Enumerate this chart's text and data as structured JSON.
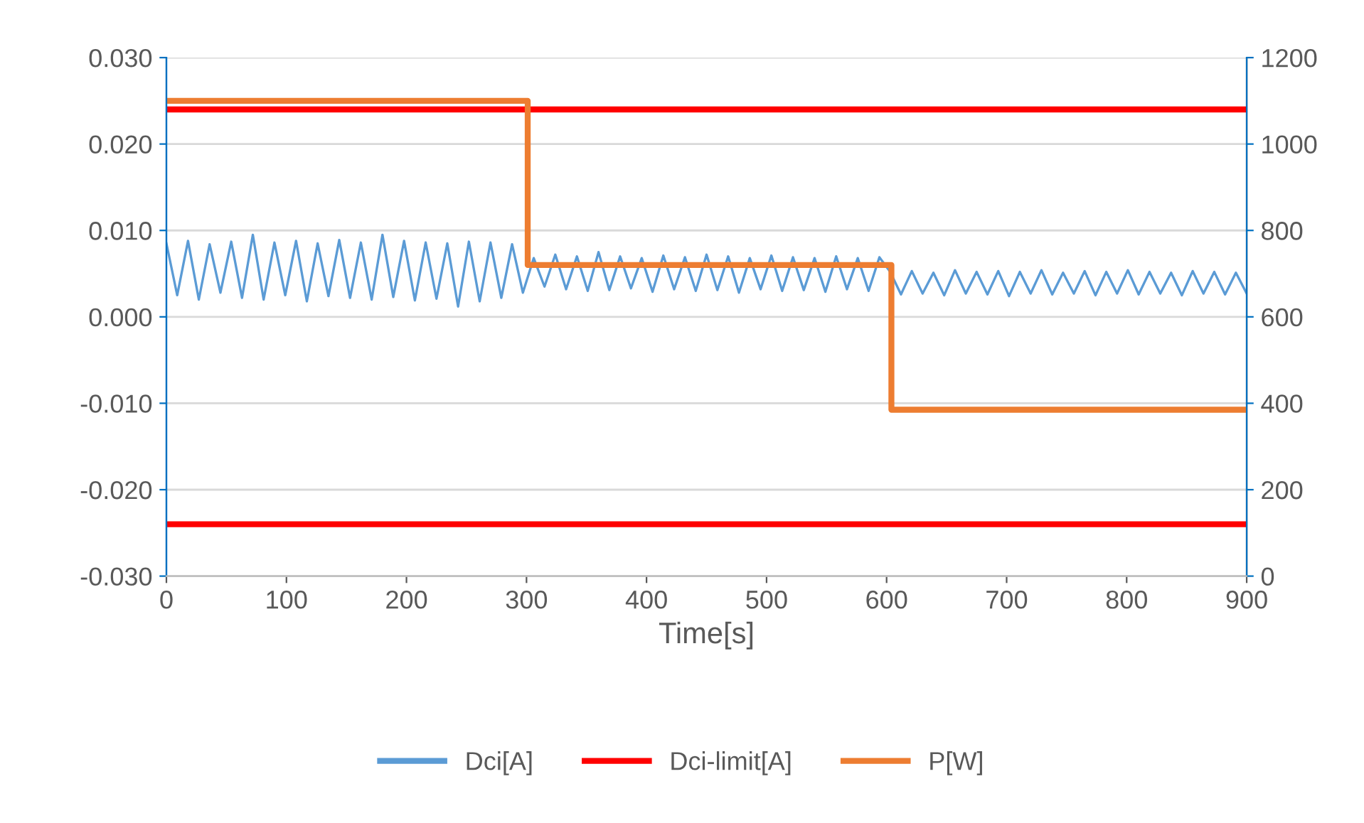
{
  "chart_data": {
    "type": "line",
    "xlabel": "Time[s]",
    "xlim": [
      0,
      900
    ],
    "xticks": [
      0,
      100,
      200,
      300,
      400,
      500,
      600,
      700,
      800,
      900
    ],
    "ylim": [
      -0.03,
      0.03
    ],
    "yticks": [
      {
        "value": -0.03,
        "label": "-0.030"
      },
      {
        "value": -0.02,
        "label": "-0.020"
      },
      {
        "value": -0.01,
        "label": "-0.010"
      },
      {
        "value": 0,
        "label": "0.000"
      },
      {
        "value": 0.01,
        "label": "0.010"
      },
      {
        "value": 0.02,
        "label": "0.020"
      },
      {
        "value": 0.03,
        "label": "0.030"
      }
    ],
    "y2lim": [
      0,
      1200
    ],
    "y2ticks": [
      0,
      200,
      400,
      600,
      800,
      1000,
      1200
    ],
    "grid": "y",
    "legend": "bottom",
    "marker": "none",
    "line_style": "solid",
    "series": [
      {
        "name": "Dci[A]",
        "color": "#5b9bd5",
        "x": [
          0,
          9,
          18,
          27,
          36,
          45,
          54,
          63,
          72,
          81,
          90,
          99,
          108,
          117,
          126,
          135,
          144,
          153,
          162,
          171,
          180,
          189,
          198,
          207,
          216,
          225,
          234,
          243,
          252,
          261,
          270,
          279,
          288,
          297,
          306,
          315,
          324,
          333,
          342,
          351,
          360,
          369,
          378,
          387,
          396,
          405,
          414,
          423,
          432,
          441,
          450,
          459,
          468,
          477,
          486,
          495,
          504,
          513,
          522,
          531,
          540,
          549,
          558,
          567,
          576,
          585,
          594,
          603,
          612,
          621,
          630,
          639,
          648,
          657,
          666,
          675,
          684,
          693,
          702,
          711,
          720,
          729,
          738,
          747,
          756,
          765,
          774,
          783,
          792,
          801,
          810,
          819,
          828,
          837,
          846,
          855,
          864,
          873,
          882,
          891,
          900
        ],
        "values": [
          0.0085,
          0.0025,
          0.0088,
          0.002,
          0.0084,
          0.0028,
          0.0087,
          0.0022,
          0.0095,
          0.002,
          0.0086,
          0.0025,
          0.0088,
          0.0018,
          0.0085,
          0.0024,
          0.0089,
          0.0022,
          0.0086,
          0.002,
          0.0095,
          0.0023,
          0.0088,
          0.0019,
          0.0086,
          0.0021,
          0.0085,
          0.0012,
          0.0087,
          0.0018,
          0.0086,
          0.0022,
          0.0084,
          0.0028,
          0.0068,
          0.0035,
          0.0072,
          0.0032,
          0.007,
          0.003,
          0.0075,
          0.0031,
          0.007,
          0.0033,
          0.0068,
          0.0029,
          0.0071,
          0.0032,
          0.0069,
          0.003,
          0.0072,
          0.0031,
          0.007,
          0.0028,
          0.0068,
          0.0032,
          0.0071,
          0.003,
          0.0069,
          0.0031,
          0.0068,
          0.0029,
          0.007,
          0.0032,
          0.0068,
          0.003,
          0.0069,
          0.0052,
          0.0026,
          0.0053,
          0.0027,
          0.0051,
          0.0025,
          0.0054,
          0.0027,
          0.0052,
          0.0026,
          0.0053,
          0.0024,
          0.0052,
          0.0027,
          0.0054,
          0.0026,
          0.0051,
          0.0027,
          0.0053,
          0.0025,
          0.0052,
          0.0027,
          0.0054,
          0.0026,
          0.0052,
          0.0027,
          0.0051,
          0.0025,
          0.0053,
          0.0027,
          0.0052,
          0.0026,
          0.0051,
          0.0027
        ]
      },
      {
        "name": "Dci-limit[A]",
        "color": "#ff0000",
        "x": [
          0,
          900
        ],
        "values": [
          0.024,
          0.024
        ]
      },
      {
        "color": "#ff0000",
        "x": [
          0,
          900
        ],
        "values": [
          -0.024,
          -0.024
        ]
      },
      {
        "name": "P[W]",
        "color": "#ed7d31",
        "type": "step",
        "axis": "y2",
        "x": [
          0,
          301,
          604,
          900
        ],
        "values": [
          1100,
          720,
          385,
          385
        ]
      }
    ]
  }
}
